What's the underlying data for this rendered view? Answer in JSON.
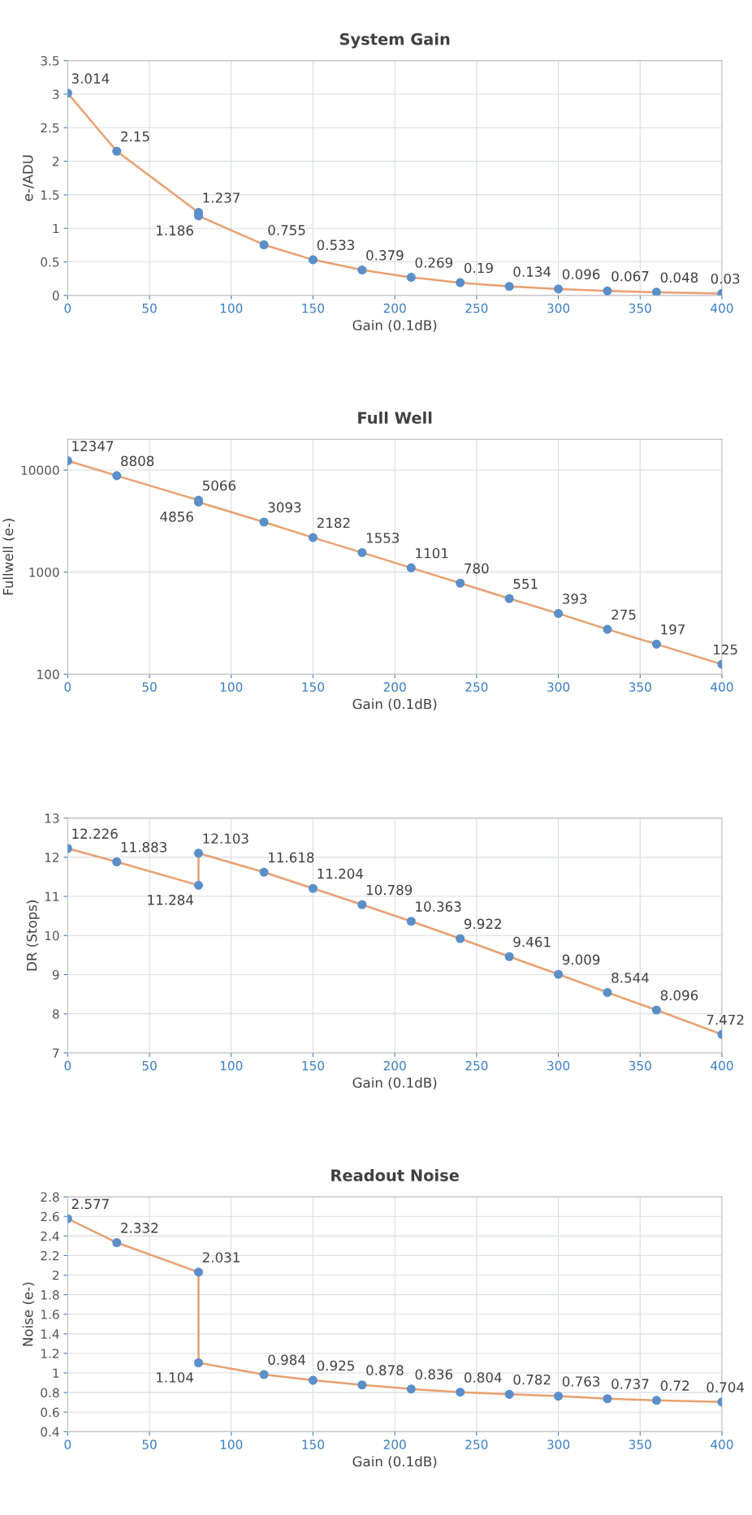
{
  "chart_data": [
    {
      "type": "line",
      "title": "System Gain",
      "xlabel": "Gain (0.1dB)",
      "ylabel": "e-/ADU",
      "xlim": [
        0,
        400
      ],
      "xticks": [
        0,
        50,
        100,
        150,
        200,
        250,
        300,
        350,
        400
      ],
      "ylim": [
        0,
        3.5
      ],
      "yticks": [
        0,
        0.5,
        1,
        1.5,
        2,
        2.5,
        3,
        3.5
      ],
      "grid": true,
      "marker": "circle",
      "data_labels": true,
      "series": [
        {
          "color": "#e8a070",
          "x": [
            0,
            30,
            80,
            80,
            120,
            150,
            180,
            210,
            240,
            270,
            300,
            330,
            360,
            400
          ],
          "values": [
            3.014,
            2.15,
            1.237,
            1.186,
            0.755,
            0.533,
            0.379,
            0.269,
            0.19,
            0.134,
            0.096,
            0.067,
            0.048,
            0.03
          ]
        }
      ]
    },
    {
      "type": "line",
      "title": "Full Well",
      "xlabel": "Gain (0.1dB)",
      "ylabel": "Fullwell (e-)",
      "log": "y",
      "xlim": [
        0,
        400
      ],
      "xticks": [
        0,
        50,
        100,
        150,
        200,
        250,
        300,
        350,
        400
      ],
      "ylim": [
        100,
        20000
      ],
      "yticks": [
        100,
        1000,
        10000
      ],
      "grid": true,
      "marker": "circle",
      "data_labels": true,
      "series": [
        {
          "color": "#e8a070",
          "x": [
            0,
            30,
            80,
            80,
            120,
            150,
            180,
            210,
            240,
            270,
            300,
            330,
            360,
            400
          ],
          "values": [
            12347,
            8808,
            5066,
            4856,
            3093,
            2182,
            1553,
            1101,
            780,
            551,
            393,
            275,
            197,
            125
          ]
        }
      ]
    },
    {
      "type": "line",
      "xlabel": "Gain (0.1dB)",
      "ylabel": "DR (Stops)",
      "xlim": [
        0,
        400
      ],
      "xticks": [
        0,
        50,
        100,
        150,
        200,
        250,
        300,
        350,
        400
      ],
      "ylim": [
        7,
        13
      ],
      "yticks": [
        7,
        8,
        9,
        10,
        11,
        12,
        13
      ],
      "grid": true,
      "marker": "circle",
      "data_labels": true,
      "series": [
        {
          "color": "#e8a070",
          "x": [
            0,
            30,
            80,
            80,
            120,
            150,
            180,
            210,
            240,
            270,
            300,
            330,
            360,
            400
          ],
          "values": [
            12.226,
            11.883,
            11.284,
            12.103,
            11.618,
            11.204,
            10.789,
            10.363,
            9.922,
            9.461,
            9.009,
            8.544,
            8.096,
            7.472
          ]
        }
      ]
    },
    {
      "type": "line",
      "title": "Readout Noise",
      "xlabel": "Gain (0.1dB)",
      "ylabel": "Noise (e-)",
      "xlim": [
        0,
        400
      ],
      "xticks": [
        0,
        50,
        100,
        150,
        200,
        250,
        300,
        350,
        400
      ],
      "ylim": [
        0.4,
        2.8
      ],
      "yticks": [
        0.4,
        0.6,
        0.8,
        1,
        1.2,
        1.4,
        1.6,
        1.8,
        2,
        2.2,
        2.4,
        2.6,
        2.8
      ],
      "grid": true,
      "marker": "circle",
      "data_labels": true,
      "series": [
        {
          "color": "#e8a070",
          "x": [
            0,
            30,
            80,
            80,
            120,
            150,
            180,
            210,
            240,
            270,
            300,
            330,
            360,
            400
          ],
          "values": [
            2.577,
            2.332,
            2.031,
            1.104,
            0.984,
            0.925,
            0.878,
            0.836,
            0.804,
            0.782,
            0.763,
            0.737,
            0.72,
            0.704
          ]
        }
      ]
    }
  ]
}
